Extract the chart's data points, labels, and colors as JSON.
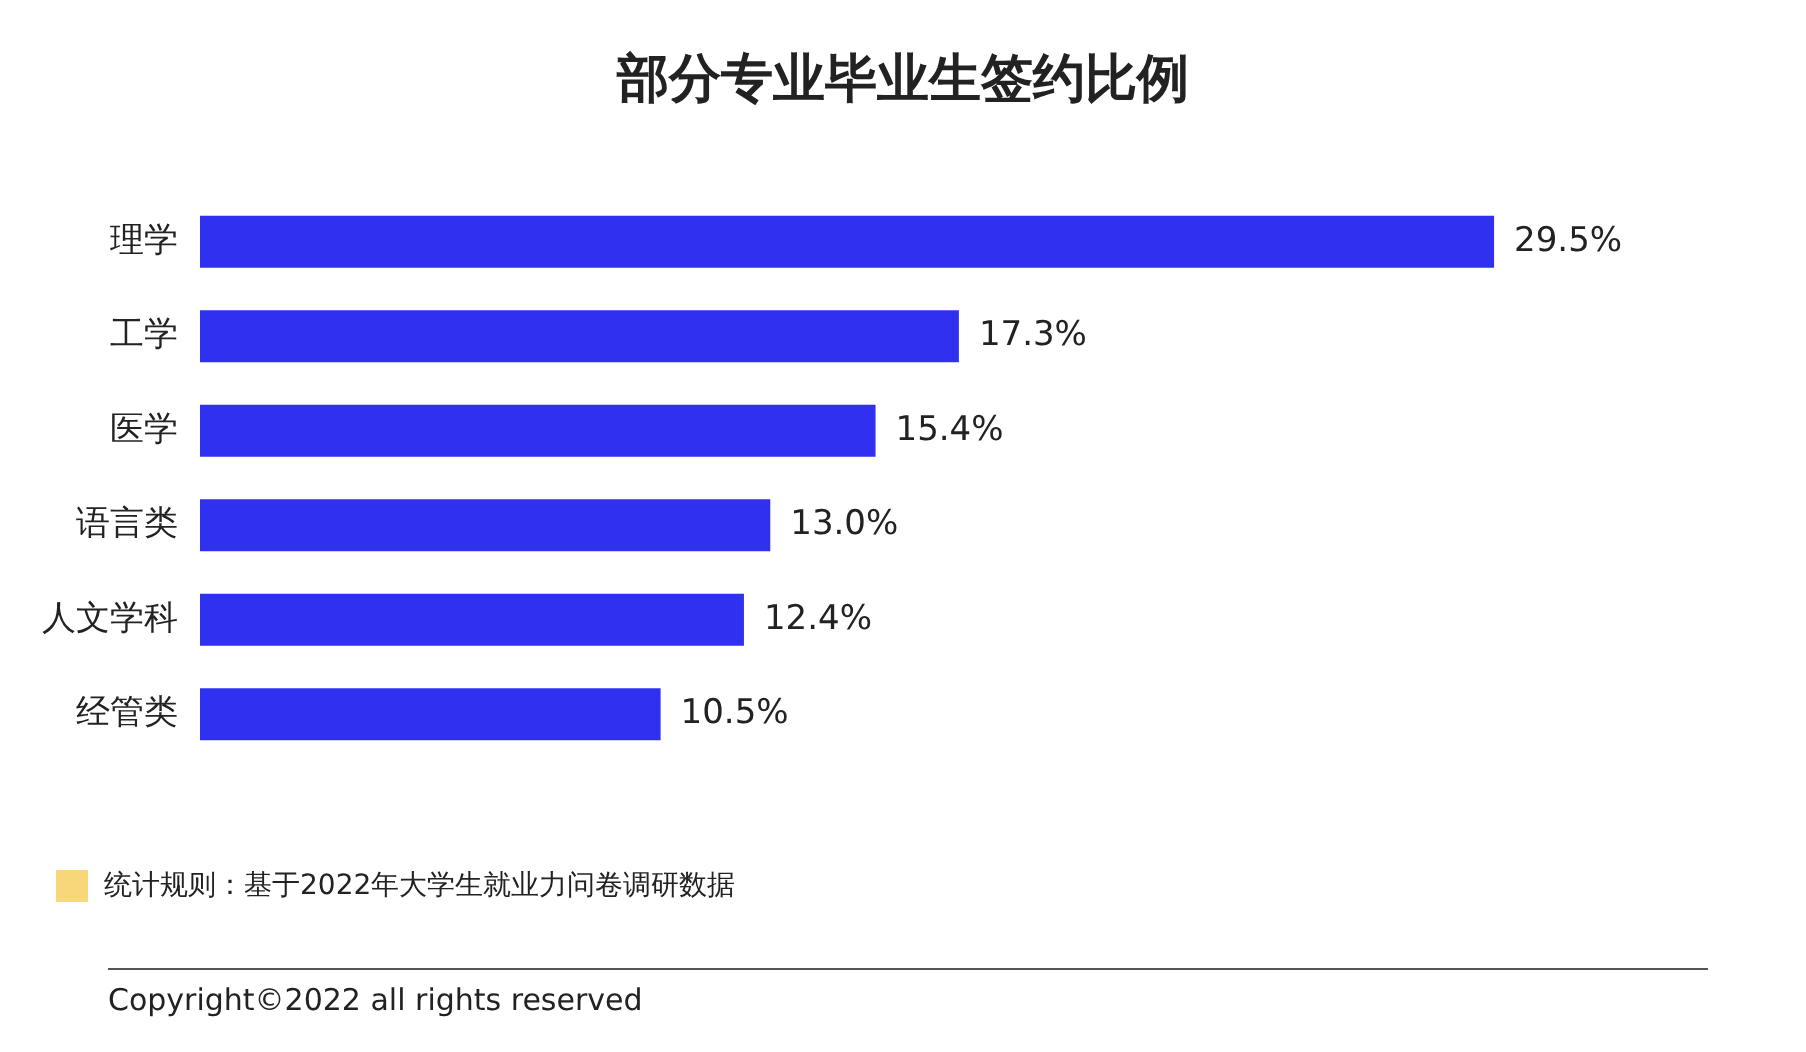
{
  "chart_data": {
    "type": "bar",
    "orientation": "horizontal",
    "title": "部分专业毕业生签约比例",
    "categories": [
      "理学",
      "工学",
      "医学",
      "语言类",
      "人文学科",
      "经管类"
    ],
    "values": [
      29.5,
      17.3,
      15.4,
      13.0,
      12.4,
      10.5
    ],
    "value_labels": [
      "29.5%",
      "17.3%",
      "15.4%",
      "13.0%",
      "12.4%",
      "10.5%"
    ],
    "color": "#3030f0",
    "legend": false,
    "annotations": [
      "统计规则：基于2022年大学生就业力问卷调研数据",
      "Copyright©2022 all rights reserved"
    ]
  }
}
